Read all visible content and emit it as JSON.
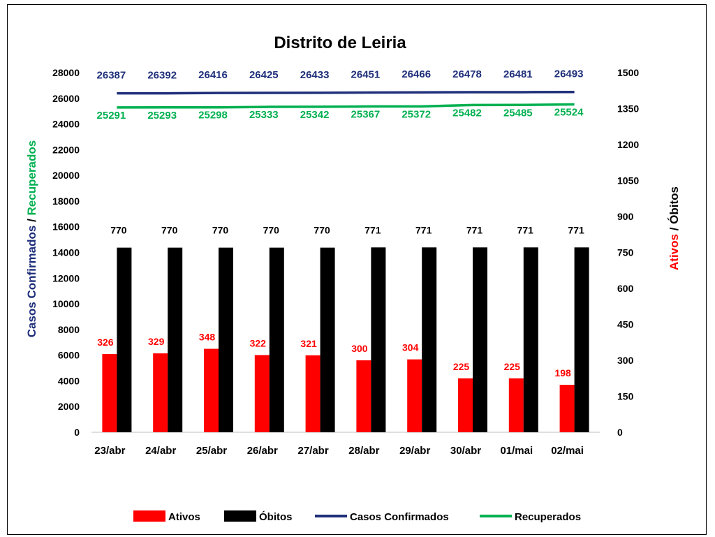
{
  "chart_data": {
    "type": "bar",
    "title": "Distrito de Leiria",
    "categories": [
      "23/abr",
      "24/abr",
      "25/abr",
      "26/abr",
      "27/abr",
      "28/abr",
      "29/abr",
      "30/abr",
      "01/mai",
      "02/mai"
    ],
    "left_axis": {
      "label_part1": "Casos Confirmados",
      "label_sep": " / ",
      "label_part2": "Recuperados",
      "label_part1_color": "#1f2f7a",
      "label_part2_color": "#00b050",
      "ylim": [
        0,
        28000
      ],
      "ticks": [
        "0",
        "2000",
        "4000",
        "6000",
        "8000",
        "10000",
        "12000",
        "14000",
        "16000",
        "18000",
        "20000",
        "22000",
        "24000",
        "26000",
        "28000"
      ]
    },
    "right_axis": {
      "label_part1": "Ativos",
      "label_sep": " / ",
      "label_part2": "Óbitos",
      "label_part1_color": "#ff0000",
      "label_part2_color": "#000000",
      "ylim": [
        0,
        1500
      ],
      "ticks": [
        "0",
        "150",
        "300",
        "450",
        "600",
        "750",
        "900",
        "1050",
        "1200",
        "1350",
        "1500"
      ]
    },
    "series": [
      {
        "name": "Ativos",
        "kind": "bar",
        "axis": "right",
        "color": "#ff0000",
        "values": [
          326,
          329,
          348,
          322,
          321,
          300,
          304,
          225,
          225,
          198
        ]
      },
      {
        "name": "Óbitos",
        "kind": "bar",
        "axis": "right",
        "color": "#000000",
        "values": [
          770,
          770,
          770,
          770,
          770,
          771,
          771,
          771,
          771,
          771
        ]
      },
      {
        "name": "Casos Confirmados",
        "kind": "line",
        "axis": "left",
        "color": "#1f2f7a",
        "values": [
          26387,
          26392,
          26416,
          26425,
          26433,
          26451,
          26466,
          26478,
          26481,
          26493
        ]
      },
      {
        "name": "Recuperados",
        "kind": "line",
        "axis": "left",
        "color": "#00b050",
        "values": [
          25291,
          25293,
          25298,
          25333,
          25342,
          25367,
          25372,
          25482,
          25485,
          25524
        ]
      }
    ],
    "legend_position": "bottom",
    "grid": false
  }
}
